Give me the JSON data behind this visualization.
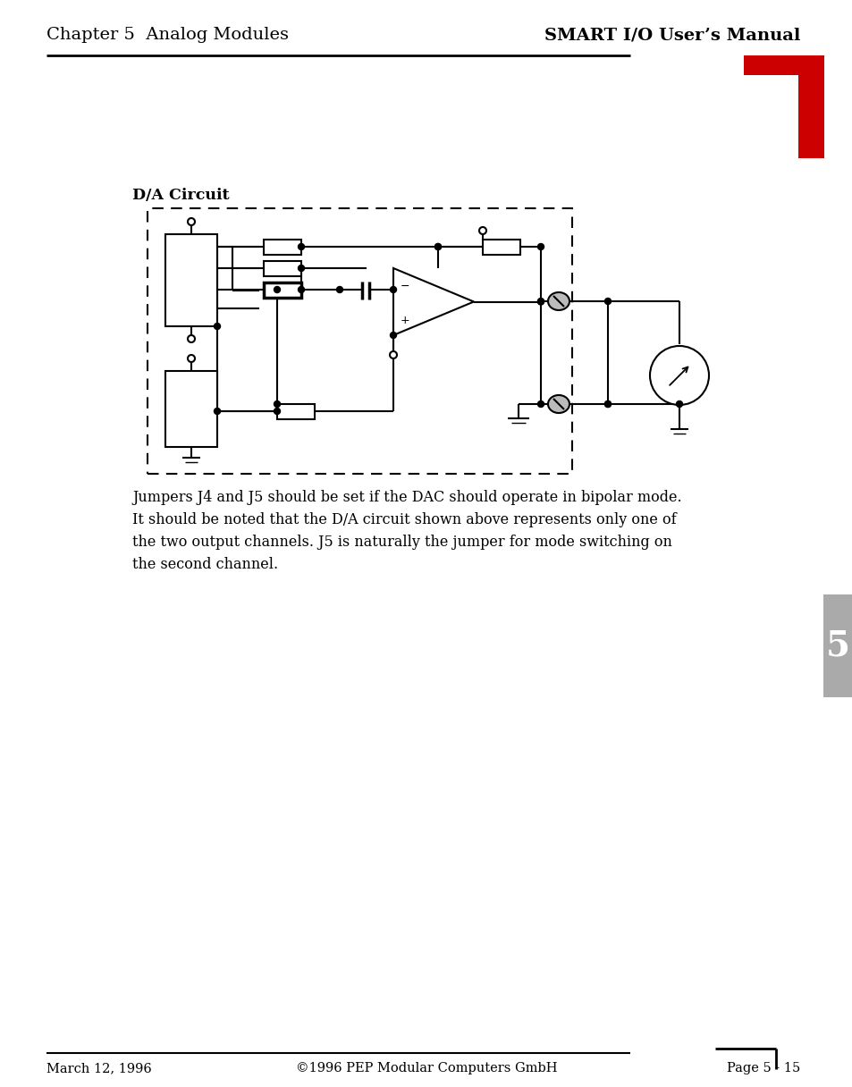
{
  "title_left": "Chapter 5  Analog Modules",
  "title_right": "SMART I/O User’s Manual",
  "section_title": "D/A Circuit",
  "body_text_lines": [
    "Jumpers J4 and J5 should be set if the DAC should operate in bipolar mode.",
    "It should be noted that the D/A circuit shown above represents only one of",
    "the two output channels. J5 is naturally the jumper for mode switching on",
    "the second channel."
  ],
  "footer_left": "March 12, 1996",
  "footer_center": "©1996 PEP Modular Computers GmbH",
  "footer_right": "Page 5 - 15",
  "tab_number": "5",
  "red_color": "#cc0000",
  "black": "#000000",
  "gray_tab": "#aaaaaa",
  "page_width": 9.54,
  "page_height": 12.16
}
